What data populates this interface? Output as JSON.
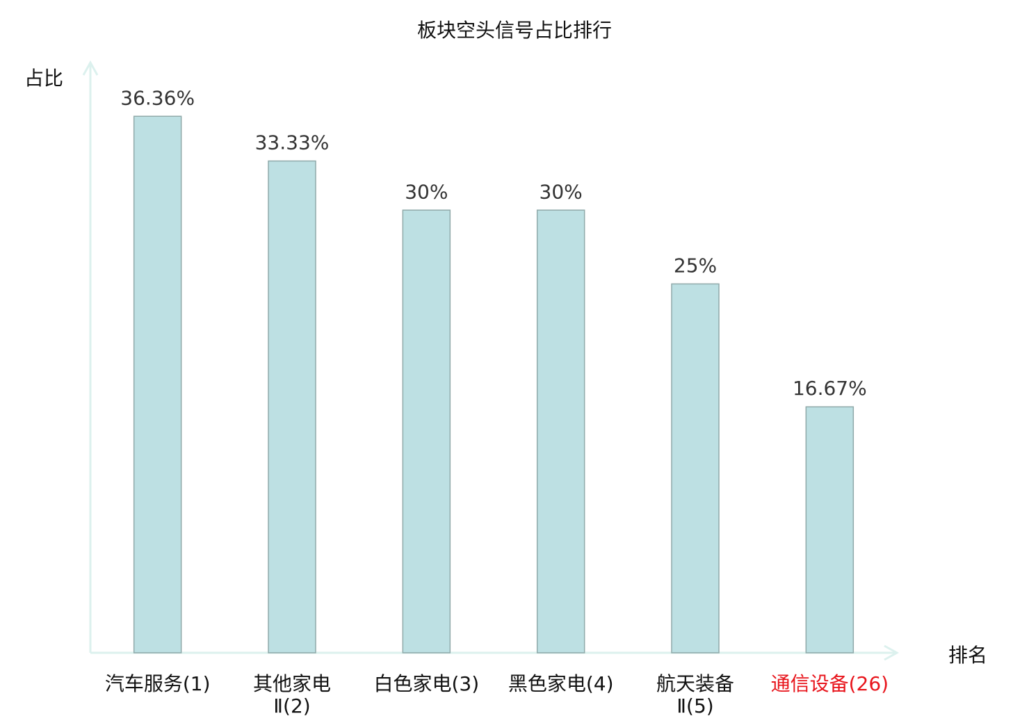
{
  "chart_data": {
    "type": "bar",
    "title": "板块空头信号占比排行",
    "xlabel": "排名",
    "ylabel": "占比",
    "categories": [
      "汽车服务(1)",
      "其他家电Ⅱ(2)",
      "白色家电(3)",
      "黑色家电(4)",
      "航天装备Ⅱ(5)",
      "通信设备(26)"
    ],
    "values": [
      36.36,
      33.33,
      30,
      30,
      25,
      16.67
    ],
    "data_labels": [
      "36.36%",
      "33.33%",
      "30%",
      "30%",
      "25%",
      "16.67%"
    ],
    "highlighted_category": "通信设备(26)",
    "ylim": [
      0,
      40
    ],
    "grid": false,
    "legend": "none",
    "colors": {
      "bar_fill": "#bde0e3",
      "bar_stroke": "#8fa9a9",
      "axis": "#dcf1ee",
      "text": "#111111",
      "data_label": "#333333",
      "highlight": "#e8141b"
    }
  }
}
